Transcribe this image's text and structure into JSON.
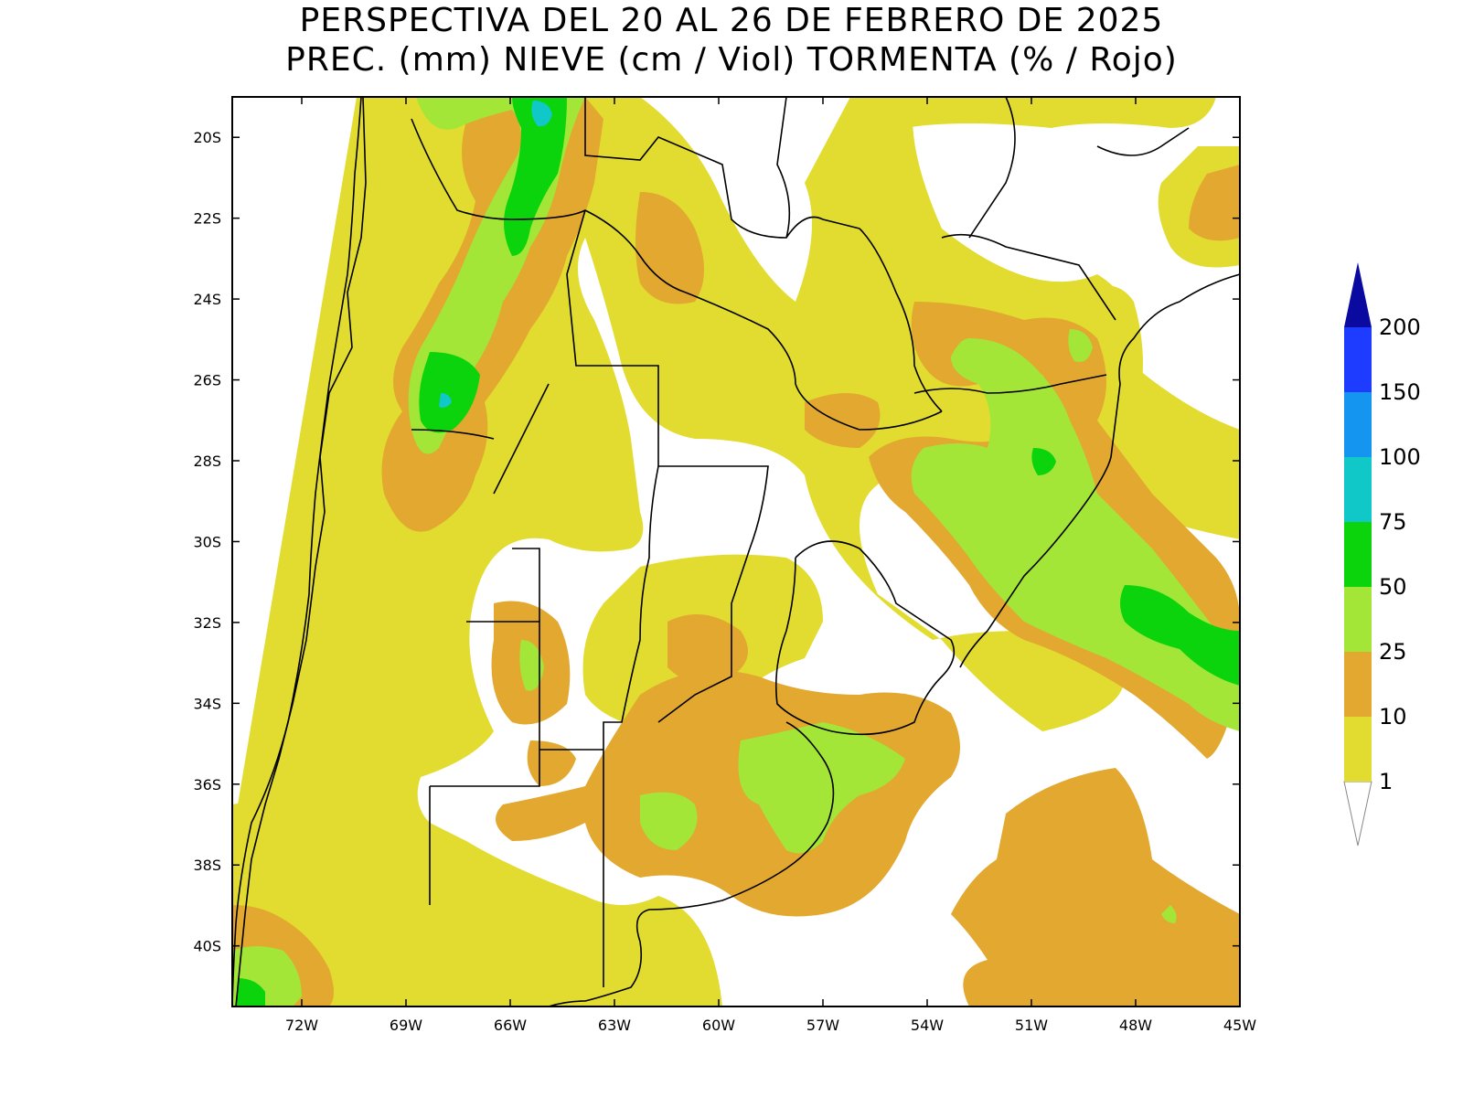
{
  "title": {
    "line1": "PERSPECTIVA DEL 20 AL 26 DE FEBRERO DE 2025",
    "line2": "PREC. (mm) NIEVE (cm / Viol) TORMENTA (% / Rojo)"
  },
  "map": {
    "lat_range": [
      -41.5,
      -19
    ],
    "lon_range": [
      -74,
      -45
    ],
    "lat_ticks": [
      "20S",
      "22S",
      "24S",
      "26S",
      "28S",
      "30S",
      "32S",
      "34S",
      "36S",
      "38S",
      "40S"
    ],
    "lat_values": [
      -20,
      -22,
      -24,
      -26,
      -28,
      -30,
      -32,
      -34,
      -36,
      -38,
      -40
    ],
    "lon_ticks": [
      "72W",
      "69W",
      "66W",
      "63W",
      "60W",
      "57W",
      "54W",
      "51W",
      "48W",
      "45W"
    ],
    "lon_values": [
      -72,
      -69,
      -66,
      -63,
      -60,
      -57,
      -54,
      -51,
      -48,
      -45
    ],
    "background_color": "#ffffff",
    "border_color": "#000000"
  },
  "legend": {
    "labels": [
      "1",
      "10",
      "25",
      "50",
      "75",
      "100",
      "150",
      "200"
    ],
    "colors": [
      "#e2dc30",
      "#e2a830",
      "#a3e638",
      "#0cd40c",
      "#10c8c8",
      "#1496f0",
      "#1e3cff",
      "#0a0aa0"
    ],
    "below_min_color": "#ffffff",
    "units": "mm"
  }
}
